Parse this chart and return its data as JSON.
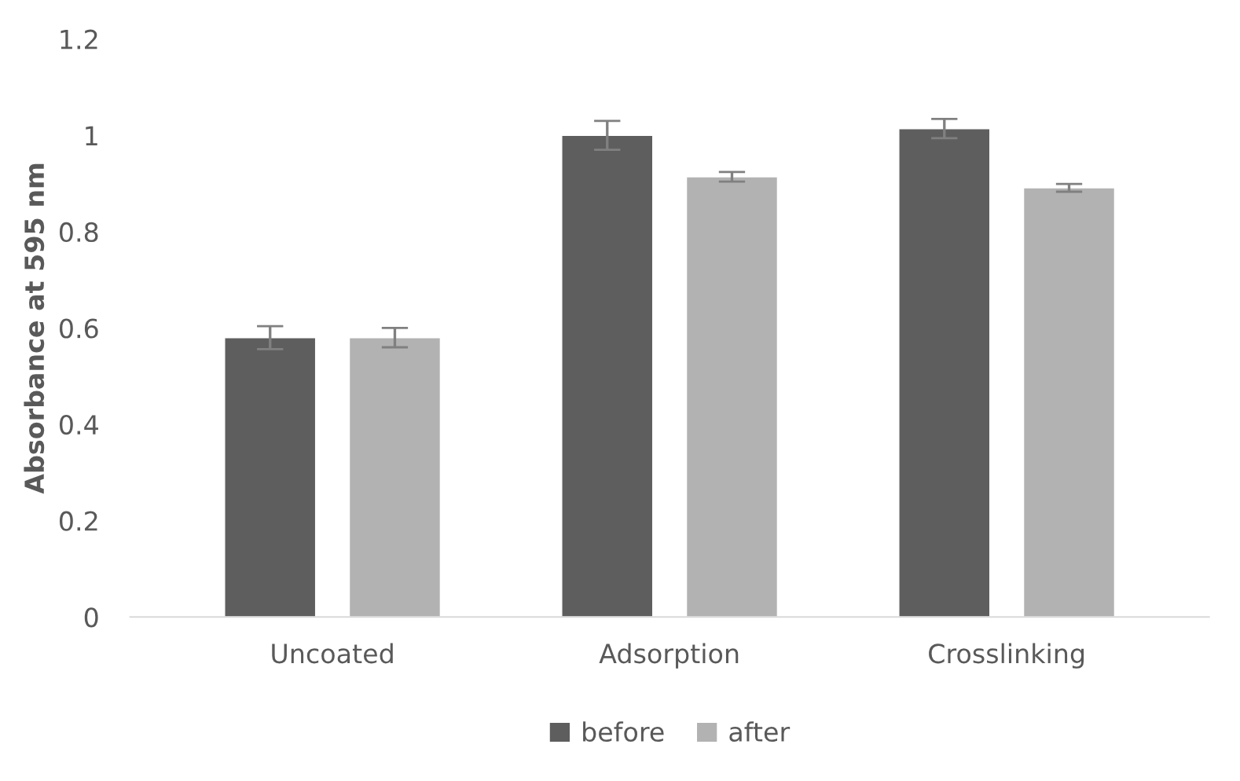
{
  "chart_data": {
    "type": "bar",
    "ylabel": "Absorbance at 595 nm",
    "categories": [
      "Uncoated",
      "Adsorption",
      "Crosslinking"
    ],
    "series": [
      {
        "name": "before",
        "color": "#5e5e5e",
        "values": [
          0.58,
          1.0,
          1.014
        ],
        "errors": [
          0.024,
          0.03,
          0.02
        ]
      },
      {
        "name": "after",
        "color": "#b2b2b2",
        "values": [
          0.58,
          0.914,
          0.891
        ],
        "errors": [
          0.02,
          0.01,
          0.008
        ]
      }
    ],
    "ylim": [
      0,
      1.2
    ],
    "yticks": [
      0,
      0.2,
      0.4,
      0.6,
      0.8,
      1,
      1.2
    ],
    "grid": false,
    "legend": "bottom"
  }
}
